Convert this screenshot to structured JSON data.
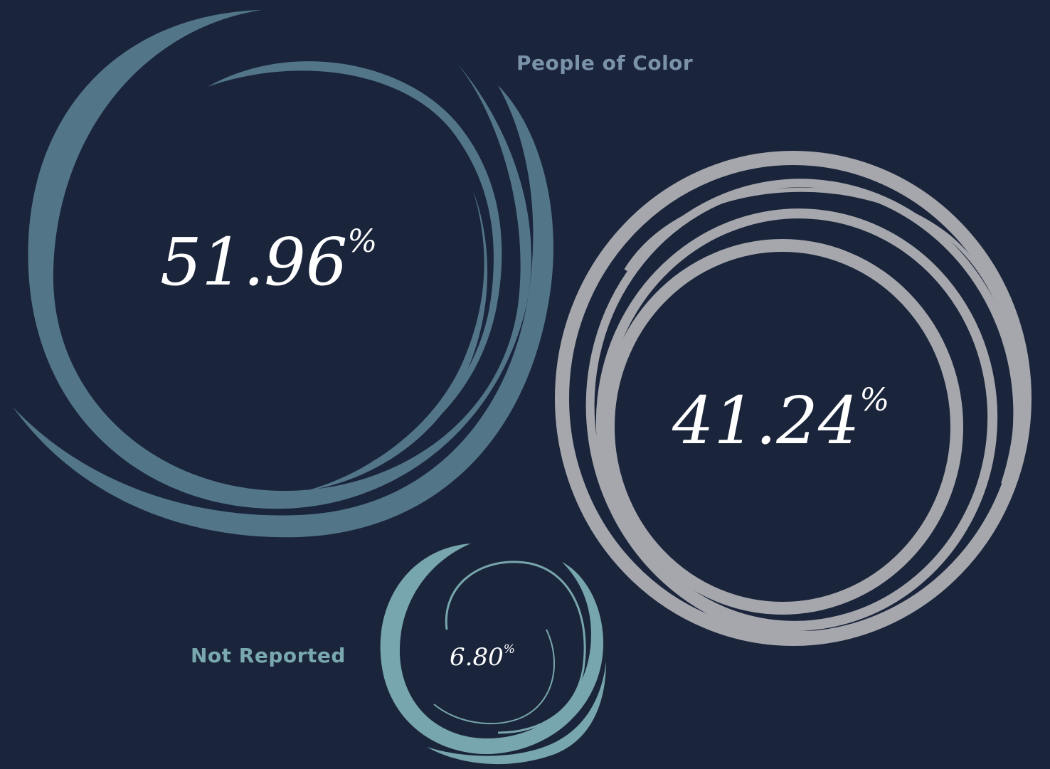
{
  "chart_data": {
    "type": "bubble",
    "title": "",
    "series": [
      {
        "name": "People of Color",
        "value": 51.96,
        "display": "51.96",
        "color": "#527588",
        "label_shown": true
      },
      {
        "name": "",
        "value": 41.24,
        "display": "41.24",
        "color": "#a5a7ac",
        "label_shown": false
      },
      {
        "name": "Not Reported",
        "value": 6.8,
        "display": "6.80",
        "color": "#78a6ae",
        "label_shown": true
      }
    ],
    "unit": "%"
  },
  "labels": {
    "people_of_color": "People of Color",
    "not_reported": "Not Reported"
  },
  "values": {
    "poc": "51.96",
    "white": "41.24",
    "nr": "6.80",
    "percent": "%"
  },
  "colors": {
    "background": "#1a243b",
    "people_of_color": "#527588",
    "white": "#a5a7ac",
    "not_reported": "#78a6ae",
    "poc_label": "#7b93a9",
    "nr_label": "#79a8b0",
    "value_text": "#ffffff"
  }
}
